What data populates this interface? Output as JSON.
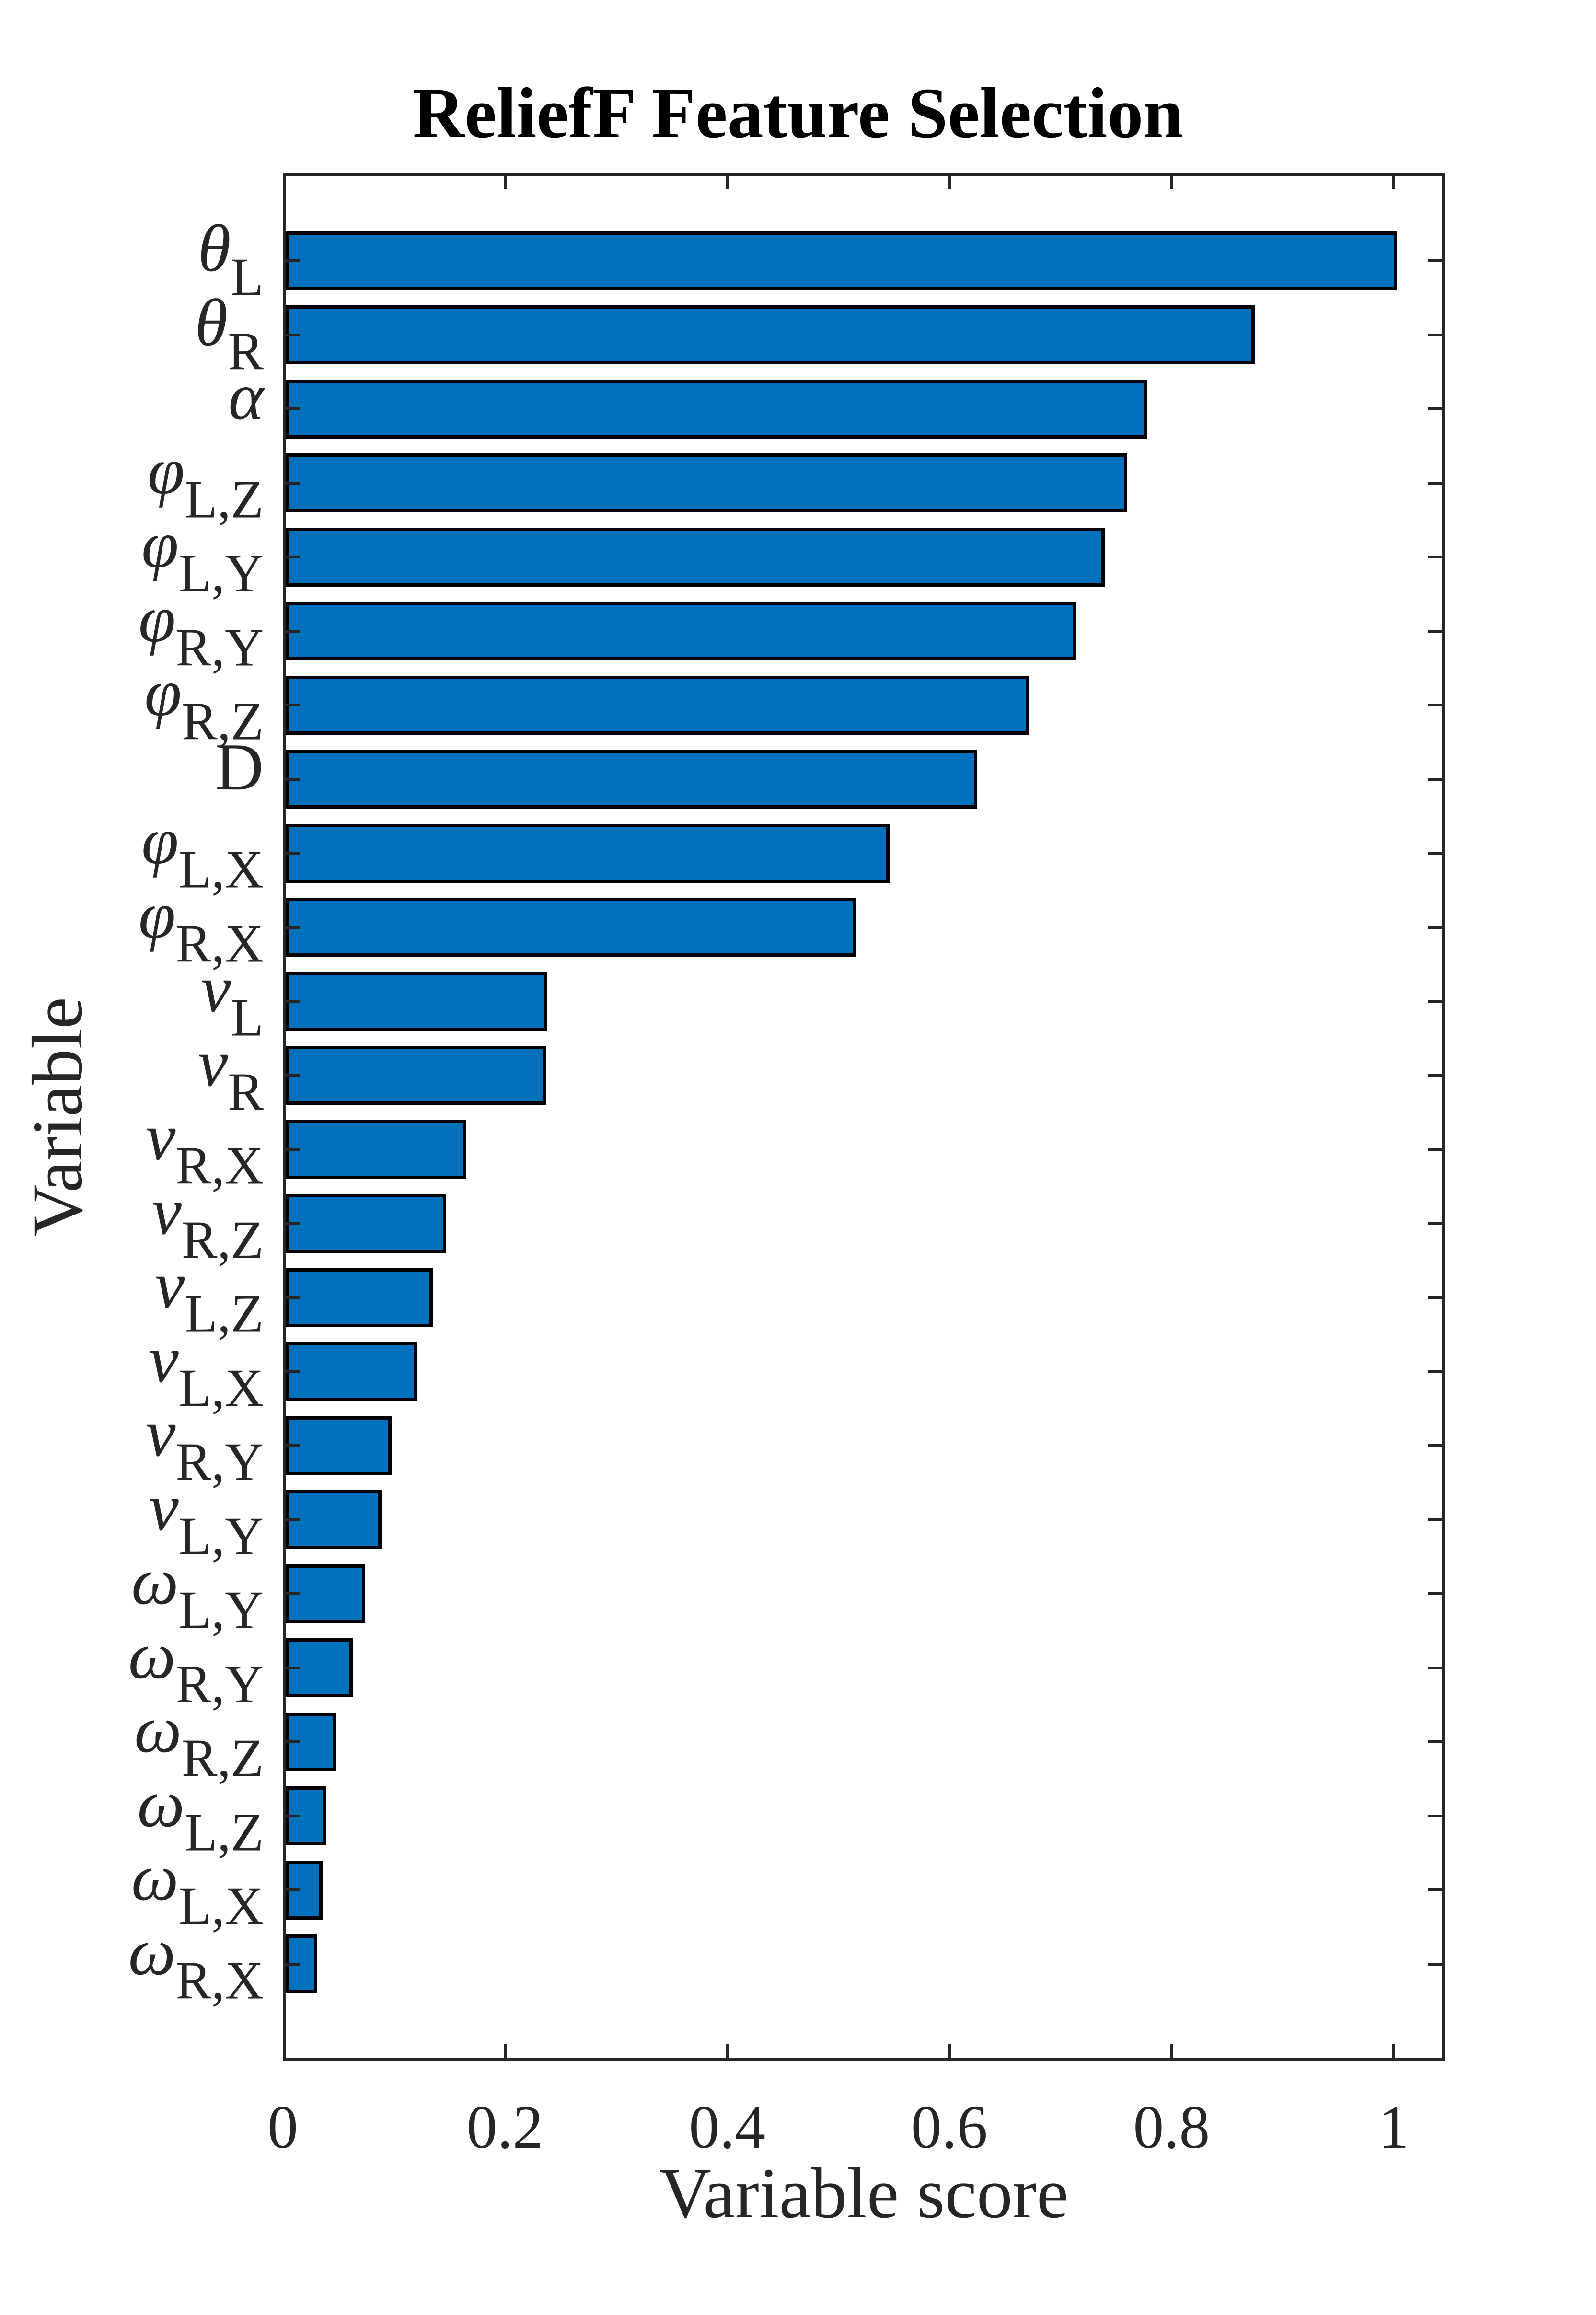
{
  "chart_data": {
    "type": "bar",
    "orientation": "horizontal",
    "title": "ReliefF Feature Selection",
    "xlabel": "Variable score",
    "ylabel": "Variable",
    "xlim": [
      0,
      1.05
    ],
    "xticks": [
      "0",
      "0.2",
      "0.4",
      "0.6",
      "0.8",
      "1"
    ],
    "grid": false,
    "legend": null,
    "bar_color": "#0072BD",
    "edge_color": "#000000",
    "categories": [
      {
        "sym": "θ",
        "sub": "L"
      },
      {
        "sym": "θ",
        "sub": "R"
      },
      {
        "sym": "α",
        "sub": ""
      },
      {
        "sym": "φ",
        "sub": "L,Z"
      },
      {
        "sym": "φ",
        "sub": "L,Y"
      },
      {
        "sym": "φ",
        "sub": "R,Y"
      },
      {
        "sym": "φ",
        "sub": "R,Z"
      },
      {
        "sym": "D",
        "sub": ""
      },
      {
        "sym": "φ",
        "sub": "L,X"
      },
      {
        "sym": "φ",
        "sub": "R,X"
      },
      {
        "sym": "v",
        "sub": "L"
      },
      {
        "sym": "v",
        "sub": "R"
      },
      {
        "sym": "v",
        "sub": "R,X"
      },
      {
        "sym": "v",
        "sub": "R,Z"
      },
      {
        "sym": "v",
        "sub": "L,Z"
      },
      {
        "sym": "v",
        "sub": "L,X"
      },
      {
        "sym": "v",
        "sub": "R,Y"
      },
      {
        "sym": "v",
        "sub": "L,Y"
      },
      {
        "sym": "ω",
        "sub": "L,Y"
      },
      {
        "sym": "ω",
        "sub": "R,Y"
      },
      {
        "sym": "ω",
        "sub": "R,Z"
      },
      {
        "sym": "ω",
        "sub": "L,Z"
      },
      {
        "sym": "ω",
        "sub": "L,X"
      },
      {
        "sym": "ω",
        "sub": "R,X"
      }
    ],
    "values": [
      1.0,
      0.872,
      0.775,
      0.757,
      0.737,
      0.711,
      0.669,
      0.622,
      0.543,
      0.513,
      0.235,
      0.234,
      0.162,
      0.144,
      0.132,
      0.118,
      0.095,
      0.086,
      0.071,
      0.06,
      0.045,
      0.036,
      0.033,
      0.028
    ]
  }
}
